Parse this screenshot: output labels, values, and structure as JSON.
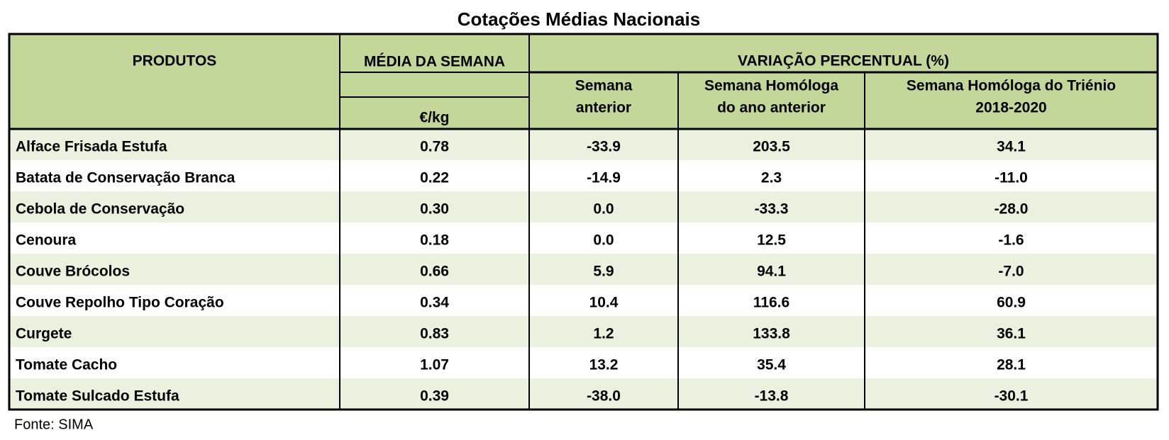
{
  "title": "Cotações Médias Nacionais",
  "table": {
    "headers": {
      "produtos": "PRODUTOS",
      "media": "MÉDIA DA SEMANA",
      "unit": "€/kg",
      "variacao": "VARIAÇÃO PERCENTUAL (%)",
      "sub": [
        [
          "Semana",
          "anterior"
        ],
        [
          "Semana Homóloga",
          "do ano anterior"
        ],
        [
          "Semana Homóloga do Triénio",
          "2018-2020"
        ]
      ]
    },
    "rows": [
      [
        "Alface Frisada Estufa",
        "0.78",
        "-33.9",
        "203.5",
        "34.1"
      ],
      [
        "Batata de Conservação Branca",
        "0.22",
        "-14.9",
        "2.3",
        "-11.0"
      ],
      [
        "Cebola de Conservação",
        "0.30",
        "0.0",
        "-33.3",
        "-28.0"
      ],
      [
        "Cenoura",
        "0.18",
        "0.0",
        "12.5",
        "-1.6"
      ],
      [
        "Couve Brócolos",
        "0.66",
        "5.9",
        "94.1",
        "-7.0"
      ],
      [
        "Couve Repolho Tipo Coração",
        "0.34",
        "10.4",
        "116.6",
        "60.9"
      ],
      [
        "Curgete",
        "0.83",
        "1.2",
        "133.8",
        "36.1"
      ],
      [
        "Tomate Cacho",
        "1.07",
        "13.2",
        "35.4",
        "28.1"
      ],
      [
        "Tomate Sulcado Estufa",
        "0.39",
        "-38.0",
        "-13.8",
        "-30.1"
      ]
    ]
  },
  "source": "Fonte: SIMA"
}
